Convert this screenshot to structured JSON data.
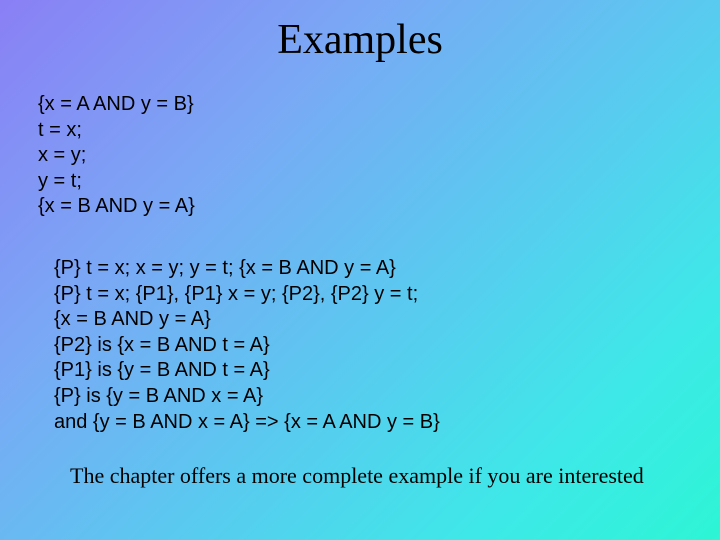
{
  "title": "Examples",
  "block1": {
    "l1": "{x = A AND y = B}",
    "l2": "t = x;",
    "l3": "x = y;",
    "l4": "y = t;",
    "l5": "{x = B AND y = A}"
  },
  "block2": {
    "l1": "{P} t = x; x = y; y = t; {x = B AND y = A}",
    "l2": "{P} t = x; {P1}, {P1} x = y; {P2}, {P2} y = t;",
    "l3": "{x = B AND y = A}",
    "l4": "{P2} is {x = B AND t = A}",
    "l5": "{P1} is {y = B AND t = A}",
    "l6": "{P} is {y = B AND x = A}",
    "l7": "and {y = B AND x = A} => {x = A AND y = B}"
  },
  "footer": "The chapter offers a more complete example if you are interested"
}
